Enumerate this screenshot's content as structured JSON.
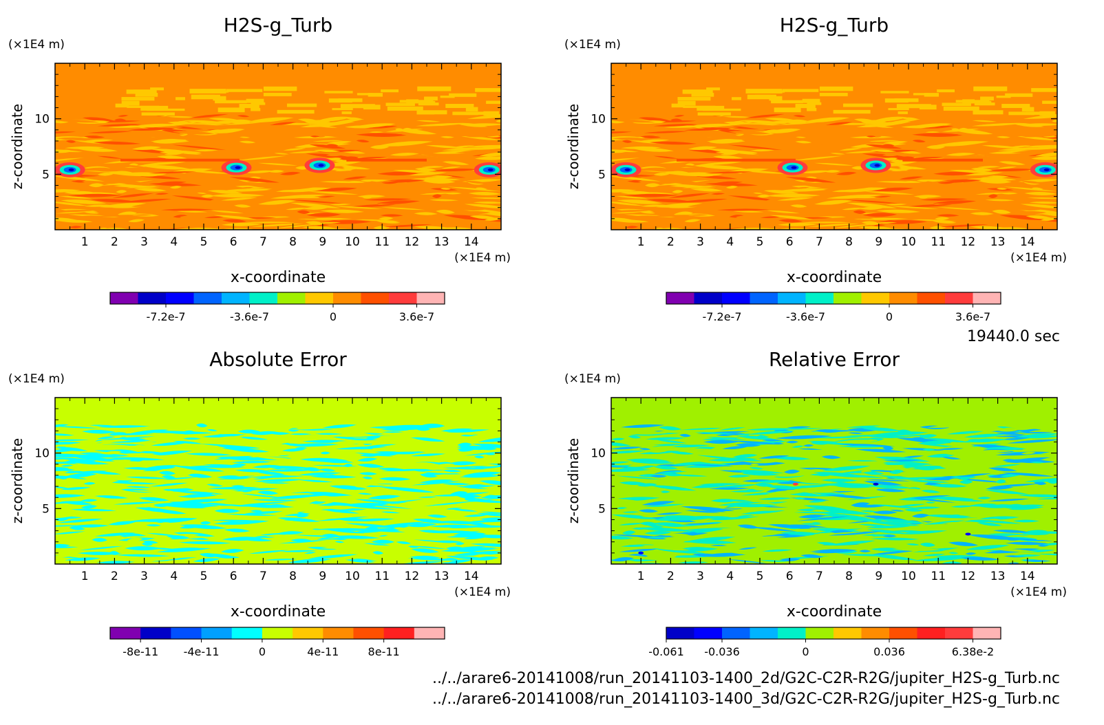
{
  "time_label": "19440.0 sec",
  "file_paths": [
    "../../arare6-20141008/run_20141103-1400_2d/G2C-C2R-R2G/jupiter_H2S-g_Turb.nc",
    "../../arare6-20141008/run_20141103-1400_3d/G2C-C2R-R2G/jupiter_H2S-g_Turb.nc"
  ],
  "chart_data": [
    {
      "type": "heatmap",
      "title": "H2S-g_Turb",
      "xlabel": "x-coordinate",
      "ylabel": "z-coordinate",
      "x_unit": "(×1E4 m)",
      "y_unit": "(×1E4 m)",
      "xlim": [
        0,
        15
      ],
      "ylim": [
        0,
        15
      ],
      "x_ticks": [
        "1",
        "2",
        "3",
        "4",
        "5",
        "6",
        "7",
        "8",
        "9",
        "10",
        "11",
        "12",
        "13",
        "14"
      ],
      "y_ticks": [
        "5",
        "10"
      ],
      "background_color": "#ff8c00",
      "colorbar": {
        "colors": [
          "#8000b0",
          "#0000c8",
          "#0000ff",
          "#0064ff",
          "#00b4ff",
          "#00f0c8",
          "#a0f000",
          "#ffc800",
          "#ff8c00",
          "#ff5000",
          "#ff3c3c",
          "#ffb4b4"
        ],
        "tick_labels": [
          "-7.2e-7",
          "-3.6e-7",
          "0",
          "3.6e-7"
        ]
      }
    },
    {
      "type": "heatmap",
      "title": "H2S-g_Turb",
      "xlabel": "x-coordinate",
      "ylabel": "z-coordinate",
      "x_unit": "(×1E4 m)",
      "y_unit": "(×1E4 m)",
      "xlim": [
        0,
        15
      ],
      "ylim": [
        0,
        15
      ],
      "x_ticks": [
        "1",
        "2",
        "3",
        "4",
        "5",
        "6",
        "7",
        "8",
        "9",
        "10",
        "11",
        "12",
        "13",
        "14"
      ],
      "y_ticks": [
        "5",
        "10"
      ],
      "background_color": "#ff8c00",
      "colorbar": {
        "colors": [
          "#8000b0",
          "#0000c8",
          "#0000ff",
          "#0064ff",
          "#00b4ff",
          "#00f0c8",
          "#a0f000",
          "#ffc800",
          "#ff8c00",
          "#ff5000",
          "#ff3c3c",
          "#ffb4b4"
        ],
        "tick_labels": [
          "-7.2e-7",
          "-3.6e-7",
          "0",
          "3.6e-7"
        ]
      }
    },
    {
      "type": "heatmap",
      "title": "Absolute Error",
      "xlabel": "x-coordinate",
      "ylabel": "z-coordinate",
      "x_unit": "(×1E4 m)",
      "y_unit": "(×1E4 m)",
      "xlim": [
        0,
        15
      ],
      "ylim": [
        0,
        15
      ],
      "x_ticks": [
        "1",
        "2",
        "3",
        "4",
        "5",
        "6",
        "7",
        "8",
        "9",
        "10",
        "11",
        "12",
        "13",
        "14"
      ],
      "y_ticks": [
        "5",
        "10"
      ],
      "background_color": "#c8ff00",
      "colorbar": {
        "colors": [
          "#8000b0",
          "#0000c8",
          "#0050ff",
          "#00a0ff",
          "#00ffff",
          "#c8ff00",
          "#ffc800",
          "#ff8c00",
          "#ff5000",
          "#ff2020",
          "#ffb4b4"
        ],
        "tick_labels": [
          "-8e-11",
          "-4e-11",
          "0",
          "4e-11",
          "8e-11"
        ]
      }
    },
    {
      "type": "heatmap",
      "title": "Relative Error",
      "xlabel": "x-coordinate",
      "ylabel": "z-coordinate",
      "x_unit": "(×1E4 m)",
      "y_unit": "(×1E4 m)",
      "xlim": [
        0,
        15
      ],
      "ylim": [
        0,
        15
      ],
      "x_ticks": [
        "1",
        "2",
        "3",
        "4",
        "5",
        "6",
        "7",
        "8",
        "9",
        "10",
        "11",
        "12",
        "13",
        "14"
      ],
      "y_ticks": [
        "5",
        "10"
      ],
      "background_color": "#a0f000",
      "colorbar": {
        "colors": [
          "#0000c8",
          "#0000ff",
          "#0064ff",
          "#00b4ff",
          "#00f0c8",
          "#a0f000",
          "#ffc800",
          "#ff8c00",
          "#ff5000",
          "#ff2020",
          "#ff3c3c",
          "#ffb4b4"
        ],
        "tick_labels": [
          "-0.061",
          "-0.036",
          "0",
          "0.036",
          "6.38e-2"
        ]
      }
    }
  ]
}
